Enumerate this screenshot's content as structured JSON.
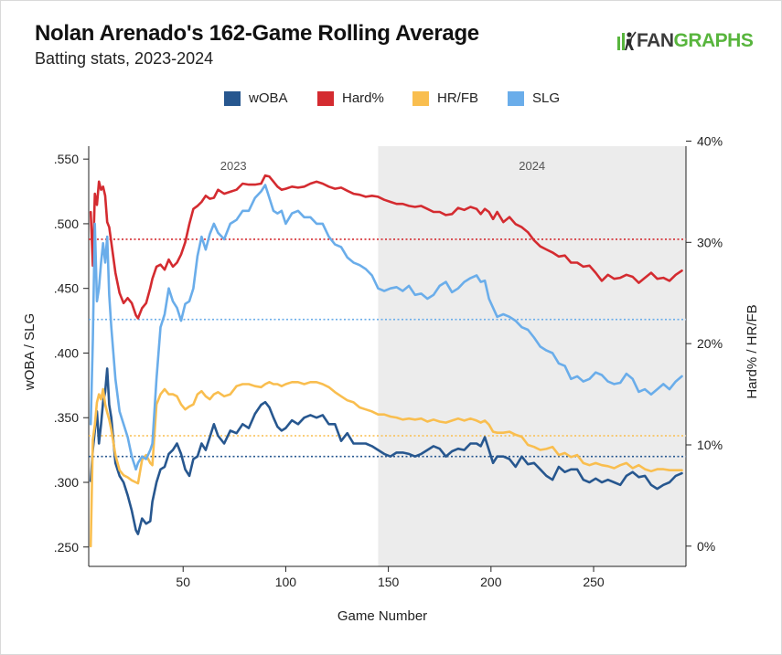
{
  "header": {
    "title": "Nolan Arenado's 162-Game Rolling Average",
    "subtitle": "Batting stats, 2023-2024",
    "logo_text_a": "FAN",
    "logo_text_b": "GRAPHS"
  },
  "colors": {
    "woba": "#27578f",
    "hard": "#d42b30",
    "hrfb": "#f9be4f",
    "slg": "#6aadea",
    "shade": "#ececec",
    "logo_green": "#58b53d"
  },
  "chart_data": {
    "type": "line",
    "title": "Nolan Arenado's 162-Game Rolling Average",
    "subtitle": "Batting stats, 2023-2024",
    "xlabel": "Game Number",
    "ylabel_left": "wOBA / SLG",
    "ylabel_right": "Hard% / HR/FB",
    "xlim": [
      4,
      295
    ],
    "ylim_left": [
      0.235,
      0.56
    ],
    "ylim_right": [
      -0.02,
      0.395
    ],
    "x_ticks": [
      50,
      100,
      150,
      200,
      250
    ],
    "x_tick_labels": [
      "50",
      "100",
      "150",
      "200",
      "250"
    ],
    "y_left_ticks": [
      0.25,
      0.3,
      0.35,
      0.4,
      0.45,
      0.5,
      0.55
    ],
    "y_left_tick_labels": [
      ".250",
      ".300",
      ".350",
      ".400",
      ".450",
      ".500",
      ".550"
    ],
    "y_right_ticks": [
      0.0,
      0.1,
      0.2,
      0.3,
      0.4
    ],
    "y_right_tick_labels": [
      "0%",
      "10%",
      "20%",
      "30%",
      "40%"
    ],
    "legend": [
      "wOBA",
      "Hard%",
      "HR/FB",
      "SLG"
    ],
    "legend_position": "top-center",
    "grid": false,
    "season_regions": [
      {
        "label": "2023",
        "start": 4,
        "end": 145,
        "shaded": false
      },
      {
        "label": "2024",
        "start": 145,
        "end": 295,
        "shaded": true
      }
    ],
    "reference_lines": [
      {
        "series": "Hard%",
        "axis": "right",
        "value": 0.303
      },
      {
        "series": "SLG",
        "axis": "left",
        "value": 0.426
      },
      {
        "series": "HR/FB",
        "axis": "right",
        "value": 0.109
      },
      {
        "series": "wOBA",
        "axis": "left",
        "value": 0.32
      }
    ],
    "series": [
      {
        "name": "wOBA",
        "axis": "left",
        "x": [
          5,
          6,
          7,
          8,
          9,
          10,
          11,
          12,
          13,
          14,
          15,
          17,
          19,
          21,
          23,
          25,
          27,
          28,
          30,
          32,
          34,
          35,
          37,
          39,
          41,
          43,
          45,
          47,
          49,
          51,
          53,
          55,
          57,
          59,
          61,
          63,
          65,
          67,
          70,
          73,
          76,
          79,
          82,
          85,
          88,
          90,
          92,
          94,
          96,
          98,
          100,
          103,
          106,
          109,
          112,
          115,
          118,
          121,
          124,
          127,
          130,
          133,
          136,
          139,
          142,
          145,
          148,
          151,
          154,
          157,
          160,
          163,
          166,
          169,
          172,
          175,
          178,
          181,
          184,
          187,
          190,
          193,
          195,
          197,
          199,
          201,
          203,
          206,
          209,
          212,
          215,
          218,
          221,
          224,
          227,
          230,
          233,
          236,
          239,
          242,
          245,
          248,
          251,
          254,
          257,
          260,
          263,
          266,
          269,
          272,
          275,
          278,
          281,
          284,
          287,
          290,
          293
        ],
        "y": [
          0.301,
          0.325,
          0.34,
          0.355,
          0.33,
          0.345,
          0.362,
          0.37,
          0.388,
          0.36,
          0.35,
          0.315,
          0.305,
          0.3,
          0.29,
          0.278,
          0.263,
          0.26,
          0.272,
          0.268,
          0.27,
          0.285,
          0.3,
          0.31,
          0.312,
          0.322,
          0.325,
          0.33,
          0.322,
          0.31,
          0.305,
          0.318,
          0.32,
          0.33,
          0.325,
          0.335,
          0.345,
          0.336,
          0.33,
          0.34,
          0.338,
          0.345,
          0.342,
          0.353,
          0.36,
          0.362,
          0.358,
          0.35,
          0.343,
          0.34,
          0.342,
          0.348,
          0.345,
          0.35,
          0.352,
          0.35,
          0.352,
          0.345,
          0.345,
          0.332,
          0.338,
          0.33,
          0.33,
          0.33,
          0.328,
          0.325,
          0.322,
          0.32,
          0.323,
          0.323,
          0.322,
          0.32,
          0.322,
          0.325,
          0.328,
          0.326,
          0.32,
          0.324,
          0.326,
          0.325,
          0.33,
          0.33,
          0.328,
          0.335,
          0.325,
          0.315,
          0.32,
          0.32,
          0.318,
          0.312,
          0.32,
          0.314,
          0.315,
          0.31,
          0.305,
          0.302,
          0.312,
          0.308,
          0.31,
          0.31,
          0.302,
          0.3,
          0.303,
          0.3,
          0.302,
          0.3,
          0.298,
          0.305,
          0.308,
          0.304,
          0.305,
          0.298,
          0.295,
          0.298,
          0.3,
          0.305,
          0.307
        ]
      },
      {
        "name": "Hard%",
        "axis": "right",
        "x": [
          5,
          6,
          7,
          8,
          9,
          10,
          11,
          12,
          13,
          14,
          15,
          17,
          19,
          21,
          23,
          25,
          27,
          28,
          30,
          32,
          34,
          35,
          37,
          39,
          41,
          43,
          45,
          47,
          49,
          51,
          53,
          55,
          57,
          59,
          61,
          63,
          65,
          67,
          70,
          73,
          76,
          79,
          82,
          85,
          88,
          90,
          92,
          94,
          96,
          98,
          100,
          103,
          106,
          109,
          112,
          115,
          118,
          121,
          124,
          127,
          130,
          133,
          136,
          139,
          142,
          145,
          148,
          151,
          154,
          157,
          160,
          163,
          166,
          169,
          172,
          175,
          178,
          181,
          184,
          187,
          190,
          193,
          195,
          197,
          199,
          201,
          203,
          206,
          209,
          212,
          215,
          218,
          221,
          224,
          227,
          230,
          233,
          236,
          239,
          242,
          245,
          248,
          251,
          254,
          257,
          260,
          263,
          266,
          269,
          272,
          275,
          278,
          281,
          284,
          287,
          290,
          293
        ],
        "y": [
          0.33,
          0.277,
          0.348,
          0.337,
          0.36,
          0.352,
          0.355,
          0.346,
          0.32,
          0.315,
          0.3,
          0.27,
          0.25,
          0.24,
          0.245,
          0.24,
          0.228,
          0.225,
          0.235,
          0.24,
          0.255,
          0.264,
          0.276,
          0.278,
          0.273,
          0.283,
          0.276,
          0.28,
          0.288,
          0.3,
          0.318,
          0.333,
          0.336,
          0.34,
          0.346,
          0.343,
          0.344,
          0.352,
          0.348,
          0.35,
          0.352,
          0.358,
          0.357,
          0.357,
          0.358,
          0.366,
          0.365,
          0.36,
          0.355,
          0.352,
          0.353,
          0.355,
          0.354,
          0.355,
          0.358,
          0.36,
          0.358,
          0.355,
          0.353,
          0.354,
          0.351,
          0.348,
          0.347,
          0.345,
          0.346,
          0.345,
          0.342,
          0.34,
          0.338,
          0.338,
          0.336,
          0.335,
          0.336,
          0.333,
          0.33,
          0.33,
          0.327,
          0.328,
          0.334,
          0.332,
          0.335,
          0.333,
          0.328,
          0.333,
          0.33,
          0.323,
          0.33,
          0.32,
          0.325,
          0.318,
          0.315,
          0.31,
          0.302,
          0.296,
          0.293,
          0.29,
          0.286,
          0.287,
          0.28,
          0.28,
          0.276,
          0.277,
          0.27,
          0.262,
          0.268,
          0.264,
          0.265,
          0.268,
          0.266,
          0.26,
          0.265,
          0.27,
          0.264,
          0.265,
          0.262,
          0.268,
          0.272
        ]
      },
      {
        "name": "HR/FB",
        "axis": "right",
        "x": [
          5,
          6,
          7,
          8,
          9,
          10,
          11,
          12,
          13,
          14,
          15,
          17,
          19,
          21,
          23,
          25,
          27,
          28,
          30,
          32,
          34,
          35,
          37,
          39,
          41,
          43,
          45,
          47,
          49,
          51,
          53,
          55,
          57,
          59,
          61,
          63,
          65,
          67,
          70,
          73,
          76,
          79,
          82,
          85,
          88,
          90,
          92,
          94,
          96,
          98,
          100,
          103,
          106,
          109,
          112,
          115,
          118,
          121,
          124,
          127,
          130,
          133,
          136,
          139,
          142,
          145,
          148,
          151,
          154,
          157,
          160,
          163,
          166,
          169,
          172,
          175,
          178,
          181,
          184,
          187,
          190,
          193,
          195,
          197,
          199,
          201,
          203,
          206,
          209,
          212,
          215,
          218,
          221,
          224,
          227,
          230,
          233,
          236,
          239,
          242,
          245,
          248,
          251,
          254,
          257,
          260,
          263,
          266,
          269,
          272,
          275,
          278,
          281,
          284,
          287,
          290,
          293
        ],
        "y": [
          0.0,
          0.105,
          0.12,
          0.142,
          0.15,
          0.145,
          0.155,
          0.14,
          0.132,
          0.125,
          0.115,
          0.09,
          0.075,
          0.07,
          0.068,
          0.065,
          0.063,
          0.062,
          0.085,
          0.09,
          0.082,
          0.08,
          0.14,
          0.15,
          0.155,
          0.15,
          0.15,
          0.148,
          0.14,
          0.135,
          0.138,
          0.14,
          0.15,
          0.153,
          0.148,
          0.145,
          0.15,
          0.152,
          0.148,
          0.15,
          0.158,
          0.16,
          0.16,
          0.158,
          0.157,
          0.16,
          0.162,
          0.16,
          0.16,
          0.158,
          0.16,
          0.162,
          0.162,
          0.16,
          0.162,
          0.162,
          0.16,
          0.157,
          0.152,
          0.148,
          0.144,
          0.142,
          0.137,
          0.135,
          0.133,
          0.13,
          0.13,
          0.128,
          0.127,
          0.125,
          0.126,
          0.125,
          0.126,
          0.123,
          0.125,
          0.123,
          0.122,
          0.124,
          0.126,
          0.124,
          0.126,
          0.124,
          0.122,
          0.124,
          0.12,
          0.113,
          0.112,
          0.112,
          0.113,
          0.11,
          0.108,
          0.1,
          0.098,
          0.095,
          0.096,
          0.098,
          0.09,
          0.092,
          0.088,
          0.09,
          0.082,
          0.08,
          0.082,
          0.08,
          0.079,
          0.077,
          0.08,
          0.082,
          0.077,
          0.08,
          0.076,
          0.074,
          0.076,
          0.076,
          0.075,
          0.075,
          0.075
        ]
      },
      {
        "name": "SLG",
        "axis": "left",
        "x": [
          5,
          6,
          7,
          8,
          9,
          10,
          11,
          12,
          13,
          14,
          15,
          17,
          19,
          21,
          23,
          25,
          27,
          28,
          30,
          32,
          34,
          35,
          37,
          39,
          41,
          43,
          45,
          47,
          49,
          51,
          53,
          55,
          57,
          59,
          61,
          63,
          65,
          67,
          70,
          73,
          76,
          79,
          82,
          85,
          88,
          90,
          92,
          94,
          96,
          98,
          100,
          103,
          106,
          109,
          112,
          115,
          118,
          121,
          124,
          127,
          130,
          133,
          136,
          139,
          142,
          145,
          148,
          151,
          154,
          157,
          160,
          163,
          166,
          169,
          172,
          175,
          178,
          181,
          184,
          187,
          190,
          193,
          195,
          197,
          199,
          201,
          203,
          206,
          209,
          212,
          215,
          218,
          221,
          224,
          227,
          230,
          233,
          236,
          239,
          242,
          245,
          248,
          251,
          254,
          257,
          260,
          263,
          266,
          269,
          272,
          275,
          278,
          281,
          284,
          287,
          290,
          293
        ],
        "y": [
          0.345,
          0.41,
          0.5,
          0.44,
          0.45,
          0.47,
          0.485,
          0.47,
          0.49,
          0.445,
          0.42,
          0.38,
          0.355,
          0.345,
          0.335,
          0.32,
          0.31,
          0.315,
          0.32,
          0.318,
          0.325,
          0.33,
          0.38,
          0.42,
          0.43,
          0.45,
          0.44,
          0.435,
          0.425,
          0.438,
          0.44,
          0.45,
          0.475,
          0.49,
          0.48,
          0.492,
          0.5,
          0.493,
          0.488,
          0.5,
          0.503,
          0.51,
          0.51,
          0.52,
          0.525,
          0.53,
          0.52,
          0.51,
          0.508,
          0.51,
          0.5,
          0.508,
          0.51,
          0.505,
          0.505,
          0.5,
          0.5,
          0.49,
          0.484,
          0.482,
          0.474,
          0.47,
          0.468,
          0.465,
          0.46,
          0.45,
          0.448,
          0.45,
          0.451,
          0.448,
          0.452,
          0.445,
          0.446,
          0.442,
          0.445,
          0.452,
          0.455,
          0.447,
          0.45,
          0.455,
          0.458,
          0.46,
          0.455,
          0.456,
          0.442,
          0.435,
          0.428,
          0.43,
          0.428,
          0.425,
          0.42,
          0.418,
          0.412,
          0.405,
          0.402,
          0.4,
          0.392,
          0.39,
          0.38,
          0.382,
          0.378,
          0.38,
          0.385,
          0.383,
          0.378,
          0.376,
          0.377,
          0.384,
          0.38,
          0.37,
          0.372,
          0.368,
          0.372,
          0.376,
          0.372,
          0.378,
          0.382
        ]
      }
    ]
  }
}
